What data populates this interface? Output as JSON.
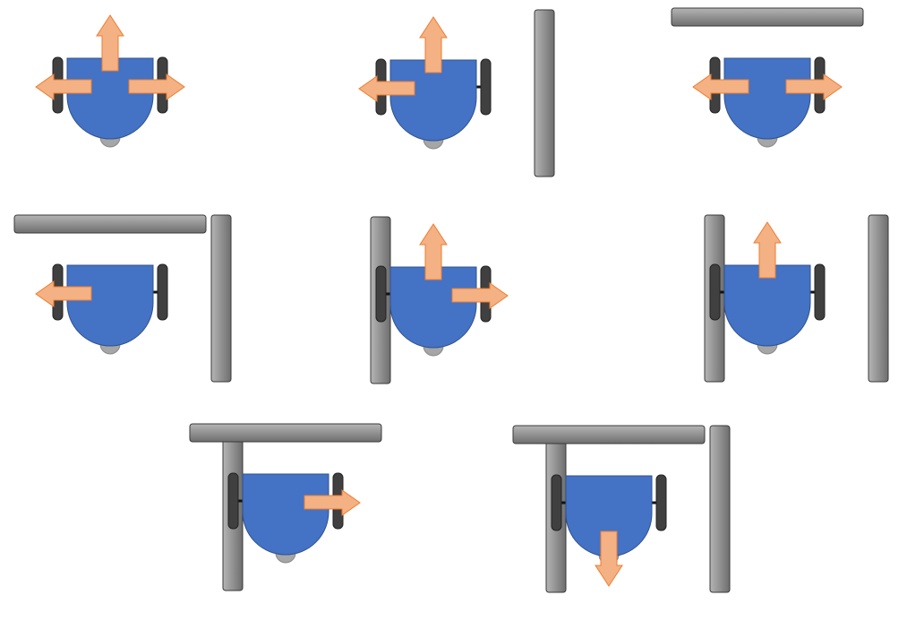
{
  "colors": {
    "background": "#ffffff",
    "robot_body": "#4472C4",
    "robot_outline": "#2F528F",
    "wheel": "#404040",
    "caster": "#A6A6A6",
    "wall_light": "#B5B5B5",
    "wall_dark": "#6E6E6E",
    "wall_outline": "#3A3A3A",
    "arrow_fill": "#F4B183",
    "arrow_outline": "#ED7D31"
  },
  "scenarios": [
    {
      "walls": [],
      "moves": [
        "forward",
        "left",
        "right"
      ]
    },
    {
      "walls": [
        "right"
      ],
      "moves": [
        "forward",
        "left"
      ]
    },
    {
      "walls": [
        "front"
      ],
      "moves": [
        "left",
        "right"
      ]
    },
    {
      "walls": [
        "front",
        "right"
      ],
      "moves": [
        "left"
      ]
    },
    {
      "walls": [
        "left"
      ],
      "moves": [
        "forward",
        "right"
      ]
    },
    {
      "walls": [
        "left",
        "right"
      ],
      "moves": [
        "forward"
      ]
    },
    {
      "walls": [
        "left",
        "front"
      ],
      "moves": [
        "right"
      ]
    },
    {
      "walls": [
        "left",
        "front",
        "right"
      ],
      "moves": [
        "back"
      ]
    }
  ]
}
